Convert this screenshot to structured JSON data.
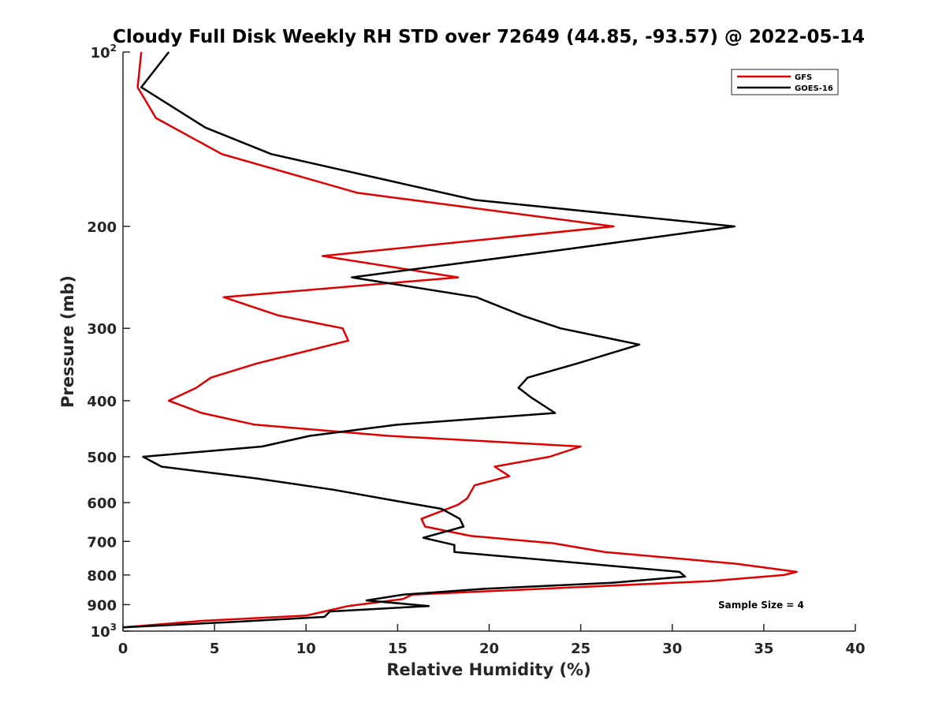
{
  "chart_data": {
    "type": "line",
    "title": "Cloudy Full Disk Weekly RH STD over 72649 (44.85, -93.57) @ 2022-05-14",
    "xlabel": "Relative Humidity (%)",
    "ylabel": "Pressure (mb)",
    "xlim": [
      0,
      40
    ],
    "ylim": [
      100,
      1000
    ],
    "y_scale": "log",
    "y_reversed": true,
    "grid": false,
    "legend_position": "top-right",
    "x_ticks": [
      "0",
      "5",
      "10",
      "15",
      "20",
      "25",
      "30",
      "35",
      "40"
    ],
    "y_ticks": [
      {
        "value": 100,
        "base": "10",
        "exp": "2"
      },
      {
        "value": 200,
        "label": "200"
      },
      {
        "value": 300,
        "label": "300"
      },
      {
        "value": 400,
        "label": "400"
      },
      {
        "value": 500,
        "label": "500"
      },
      {
        "value": 600,
        "label": "600"
      },
      {
        "value": 700,
        "label": "700"
      },
      {
        "value": 800,
        "label": "800"
      },
      {
        "value": 900,
        "label": "900"
      },
      {
        "value": 1000,
        "base": "10",
        "exp": "3"
      }
    ],
    "annotation": "Sample Size = 4",
    "series": [
      {
        "name": "GFS",
        "color": "#e00000",
        "points": [
          [
            1.0,
            100
          ],
          [
            0.8,
            115
          ],
          [
            1.8,
            130
          ],
          [
            5.4,
            150
          ],
          [
            12.8,
            175
          ],
          [
            26.8,
            200
          ],
          [
            10.9,
            225
          ],
          [
            18.3,
            245
          ],
          [
            5.5,
            265
          ],
          [
            8.5,
            285
          ],
          [
            12.0,
            300
          ],
          [
            12.3,
            315
          ],
          [
            7.3,
            345
          ],
          [
            4.8,
            365
          ],
          [
            4.0,
            380
          ],
          [
            2.5,
            400
          ],
          [
            4.3,
            420
          ],
          [
            7.2,
            440
          ],
          [
            14.5,
            460
          ],
          [
            25.0,
            480
          ],
          [
            23.3,
            500
          ],
          [
            20.3,
            520
          ],
          [
            21.1,
            540
          ],
          [
            19.2,
            560
          ],
          [
            18.8,
            590
          ],
          [
            18.3,
            605
          ],
          [
            16.3,
            640
          ],
          [
            16.5,
            660
          ],
          [
            19.0,
            685
          ],
          [
            23.5,
            705
          ],
          [
            26.3,
            730
          ],
          [
            33.5,
            765
          ],
          [
            36.8,
            790
          ],
          [
            36.1,
            800
          ],
          [
            32.0,
            820
          ],
          [
            15.8,
            865
          ],
          [
            15.3,
            880
          ],
          [
            12.3,
            905
          ],
          [
            11.0,
            925
          ],
          [
            10.0,
            940
          ],
          [
            4.3,
            960
          ],
          [
            0.0,
            985
          ]
        ]
      },
      {
        "name": "GOES-16",
        "color": "#000000",
        "points": [
          [
            2.5,
            100
          ],
          [
            1.0,
            115
          ],
          [
            4.5,
            135
          ],
          [
            8.1,
            150
          ],
          [
            19.2,
            180
          ],
          [
            33.4,
            200
          ],
          [
            23.8,
            220
          ],
          [
            12.5,
            245
          ],
          [
            19.3,
            265
          ],
          [
            21.8,
            285
          ],
          [
            23.9,
            300
          ],
          [
            28.2,
            320
          ],
          [
            24.8,
            345
          ],
          [
            22.1,
            365
          ],
          [
            21.6,
            380
          ],
          [
            22.3,
            395
          ],
          [
            23.6,
            420
          ],
          [
            15.0,
            440
          ],
          [
            10.2,
            460
          ],
          [
            7.6,
            480
          ],
          [
            1.1,
            500
          ],
          [
            2.1,
            520
          ],
          [
            7.3,
            545
          ],
          [
            11.5,
            570
          ],
          [
            14.8,
            595
          ],
          [
            17.4,
            615
          ],
          [
            18.4,
            640
          ],
          [
            18.6,
            660
          ],
          [
            16.4,
            690
          ],
          [
            18.1,
            710
          ],
          [
            18.1,
            730
          ],
          [
            30.4,
            790
          ],
          [
            30.7,
            805
          ],
          [
            26.7,
            825
          ],
          [
            19.8,
            845
          ],
          [
            15.3,
            865
          ],
          [
            13.3,
            885
          ],
          [
            16.7,
            905
          ],
          [
            11.3,
            925
          ],
          [
            11.0,
            945
          ],
          [
            5.8,
            965
          ],
          [
            0.0,
            985
          ]
        ]
      }
    ]
  }
}
